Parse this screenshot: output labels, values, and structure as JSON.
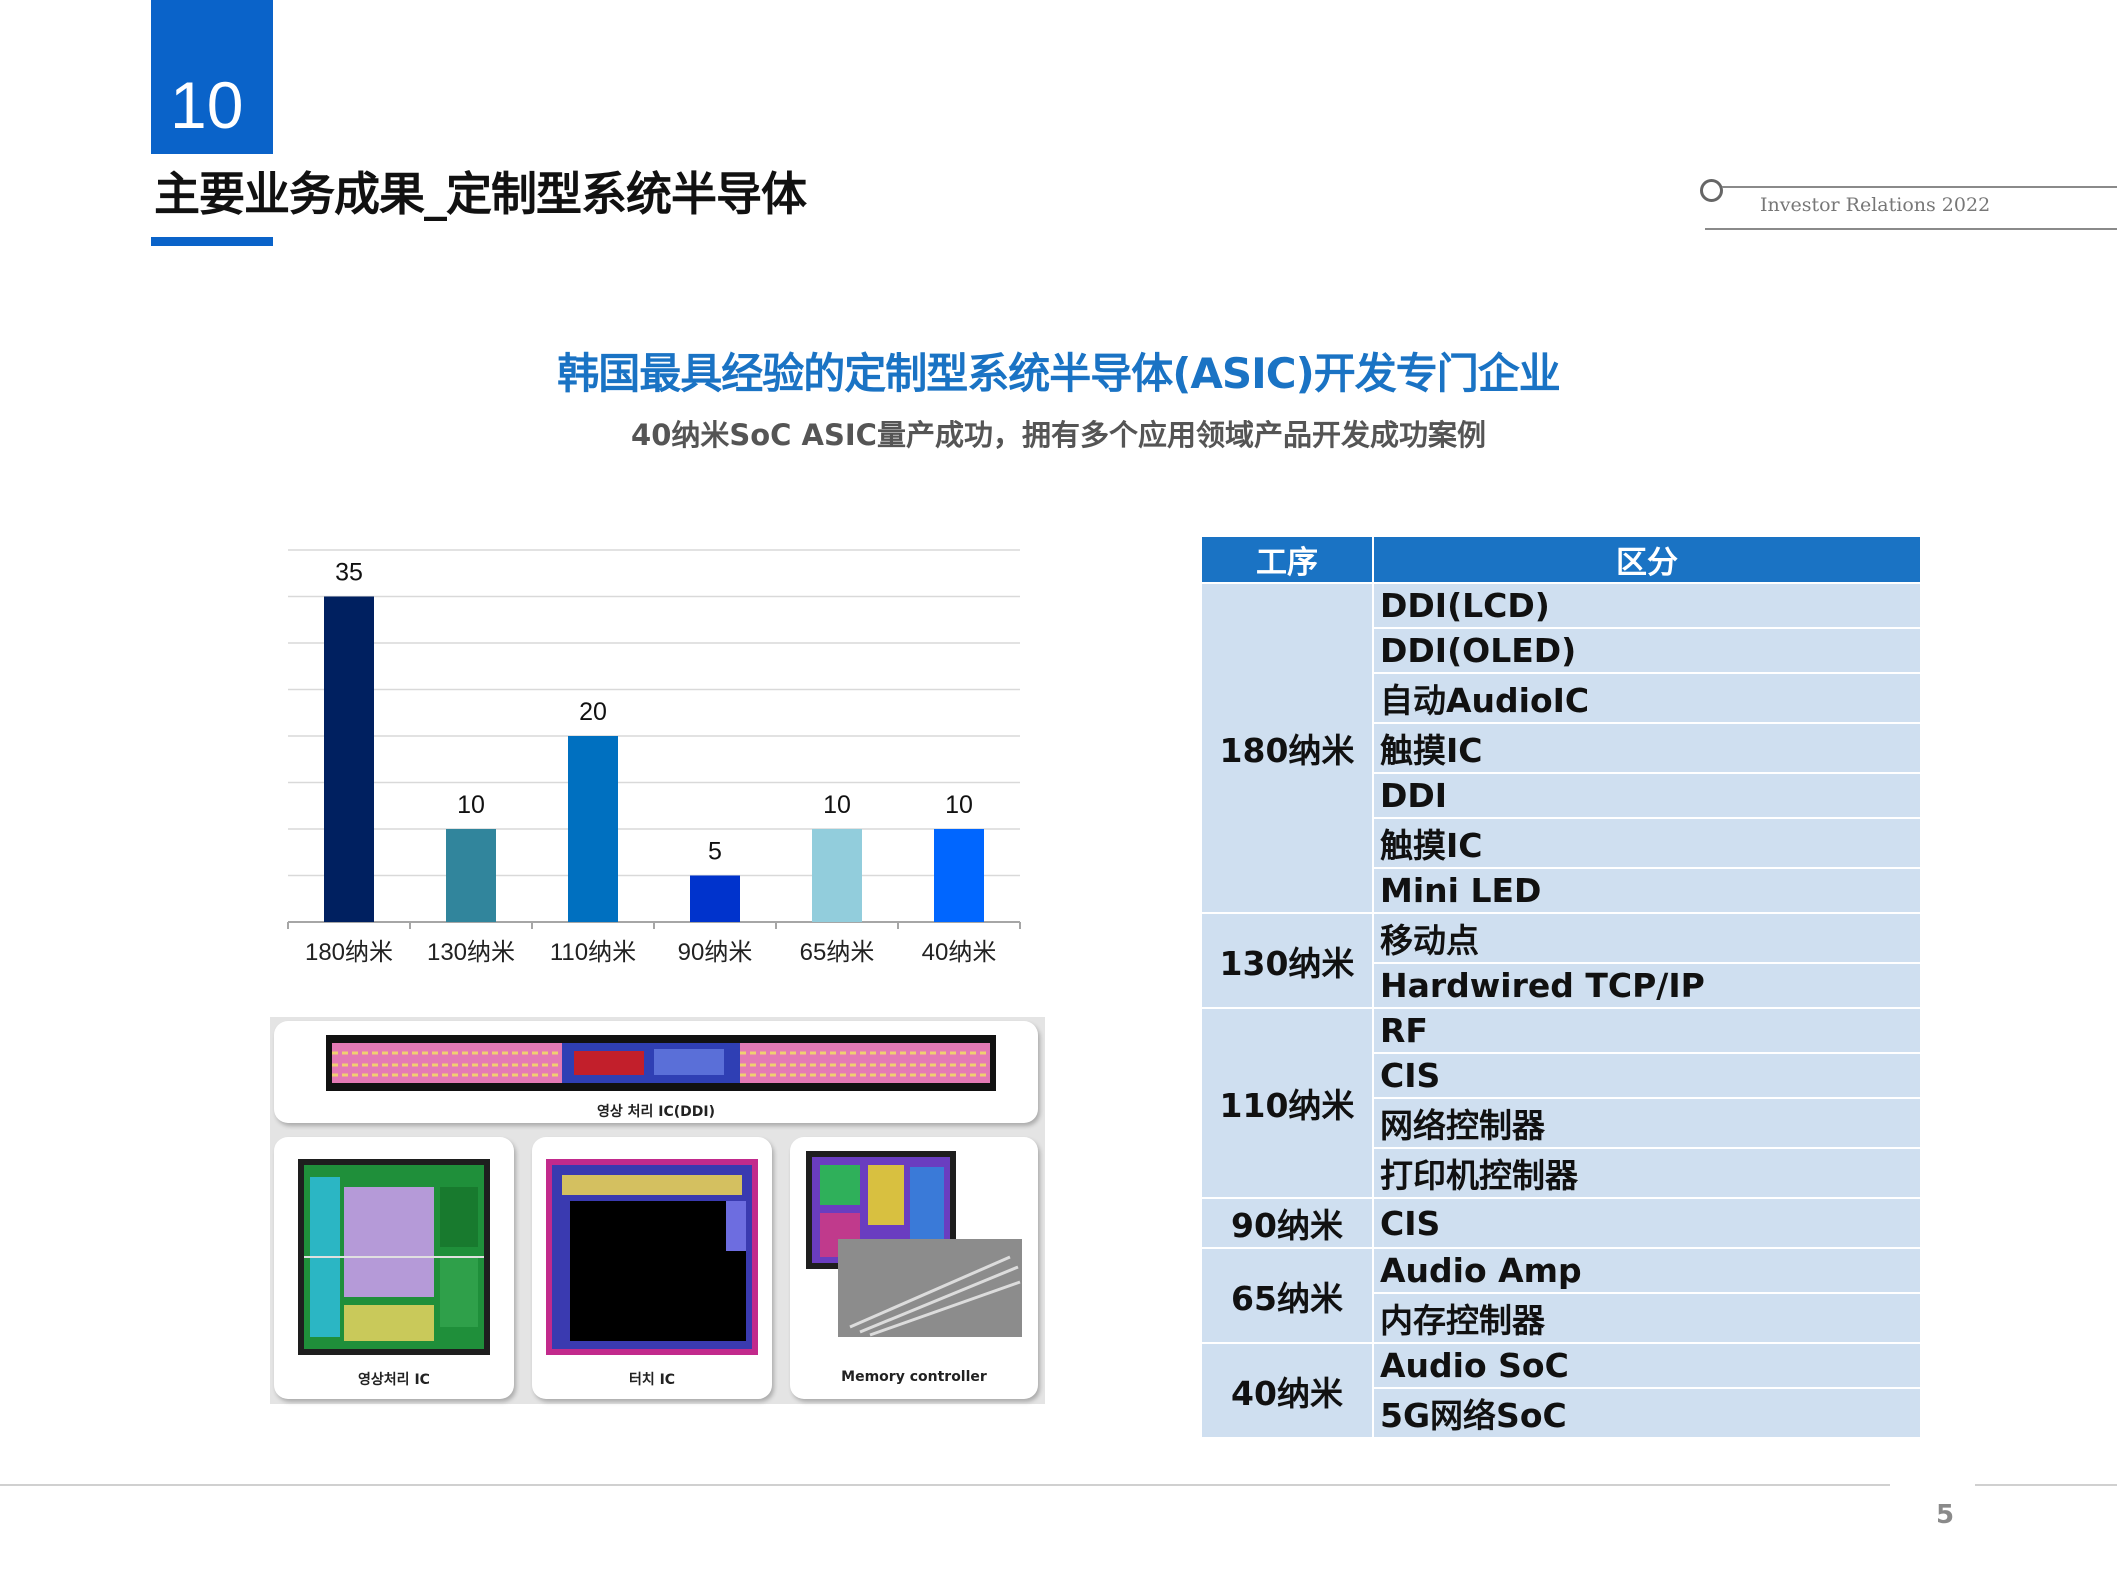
{
  "header": {
    "section_number": "10",
    "title": "主要业务成果_定制型系统半导体",
    "ir_label": "Investor Relations 2022"
  },
  "headline": "韩国最具经验的定制型系统半导体(ASIC)开发专门企业",
  "subheadline": "40纳米SoC ASIC量产成功，拥有多个应用领域产品开发成功案例",
  "chart_data": {
    "type": "bar",
    "categories": [
      "180纳米",
      "130纳米",
      "110纳米",
      "90纳米",
      "65纳米",
      "40纳米"
    ],
    "values": [
      35,
      10,
      20,
      5,
      10,
      10
    ],
    "colors": [
      "#002060",
      "#31859c",
      "#0070c0",
      "#0033cc",
      "#92cddc",
      "#0066ff"
    ],
    "ylim": [
      0,
      40
    ],
    "grid": true
  },
  "chip_images": {
    "top_caption": "영상 처리 IC(DDI)",
    "captions": [
      "영상처리 IC",
      "터치 IC",
      "Memory controller"
    ]
  },
  "table": {
    "headers": [
      "工序",
      "区分"
    ],
    "groups": [
      {
        "process": "180纳米",
        "items": [
          "DDI(LCD)",
          "DDI(OLED)",
          "自动AudioIC",
          "触摸IC",
          "DDI",
          "触摸IC",
          "Mini LED"
        ]
      },
      {
        "process": "130纳米",
        "items": [
          "移动点",
          "Hardwired TCP/IP"
        ]
      },
      {
        "process": "110纳米",
        "items": [
          "RF",
          "CIS",
          "网络控制器",
          "打印机控制器"
        ]
      },
      {
        "process": "90纳米",
        "items": [
          "CIS"
        ]
      },
      {
        "process": "65纳米",
        "items": [
          "Audio Amp",
          "内存控制器"
        ]
      },
      {
        "process": "40纳米",
        "items": [
          "Audio SoC",
          "5G网络SoC"
        ]
      }
    ]
  },
  "footer": {
    "page_number": "5"
  }
}
